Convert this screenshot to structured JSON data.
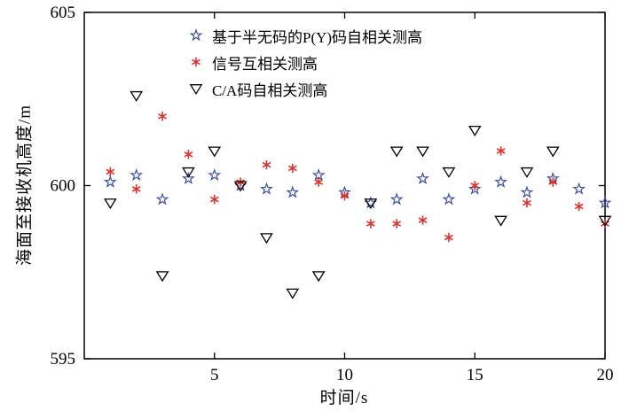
{
  "chart_data": {
    "type": "scatter",
    "title": "",
    "xlabel": "时间/s",
    "ylabel": "海面至接收机高度/m",
    "xlim": [
      0,
      20
    ],
    "ylim": [
      595,
      605
    ],
    "xticks": [
      5,
      10,
      15,
      20
    ],
    "yticks": [
      595,
      600,
      605
    ],
    "grid": false,
    "legend_position": "top-inside",
    "x": [
      1,
      2,
      3,
      4,
      5,
      6,
      7,
      8,
      9,
      10,
      11,
      12,
      13,
      14,
      15,
      16,
      17,
      18,
      19,
      20
    ],
    "series": [
      {
        "name": "基于半无码的P(Y)码自相关测高",
        "marker": "star",
        "color": "#3b4fa2",
        "values": [
          600.1,
          600.3,
          599.6,
          600.2,
          600.3,
          600.0,
          599.9,
          599.8,
          600.3,
          599.8,
          599.5,
          599.6,
          600.2,
          599.6,
          599.9,
          600.1,
          599.8,
          600.2,
          599.9,
          599.5
        ]
      },
      {
        "name": "信号互相关测高",
        "marker": "asterisk",
        "color": "#e03029",
        "values": [
          600.4,
          599.9,
          602.0,
          600.9,
          599.6,
          600.1,
          600.6,
          600.5,
          600.1,
          599.7,
          598.9,
          598.9,
          599.0,
          598.5,
          600.0,
          601.0,
          599.5,
          600.1,
          599.4,
          598.9
        ]
      },
      {
        "name": "C/A码自相关测高",
        "marker": "triangle-down",
        "color": "#000000",
        "values": [
          599.5,
          602.6,
          597.4,
          600.4,
          601.0,
          600.0,
          598.5,
          596.9,
          597.4,
          null,
          599.5,
          601.0,
          601.0,
          600.4,
          601.6,
          599.0,
          600.4,
          601.0,
          null,
          599.0
        ]
      }
    ]
  }
}
